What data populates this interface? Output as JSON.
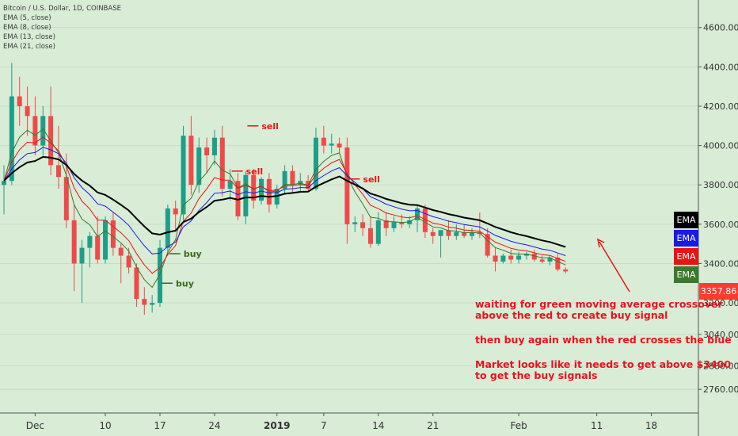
{
  "legend": {
    "symbol": "Bitcoin / U.S. Dollar, 1D, COINBASE",
    "ema1": "EMA (5, close)",
    "ema2": "EMA (8, close)",
    "ema3": "EMA (13, close)",
    "ema4": "EMA (21, close)"
  },
  "ema_tags": [
    {
      "label": "EMA",
      "color": "#000000"
    },
    {
      "label": "EMA",
      "color": "#1a1ae6"
    },
    {
      "label": "EMA",
      "color": "#e81414"
    },
    {
      "label": "EMA",
      "color": "#3a7a2a"
    }
  ],
  "last_price": "3357.86",
  "notes": {
    "line1": "waiting for green moving average crossover",
    "line2": "above the red to create buy signal",
    "line3": "then buy again when the red crosses the blue",
    "line4": "Market looks like it needs to get above $3400",
    "line5": "to get the buy signals"
  },
  "chart_data": {
    "type": "candlestick",
    "title": "Bitcoin / U.S. Dollar, 1D, COINBASE",
    "ylim": [
      2640,
      4740
    ],
    "y_ticks": [
      "4600.00",
      "4400.00",
      "4200.00",
      "4000.00",
      "3800.00",
      "3600.00",
      "3400.00",
      "3200.00",
      "3040.00",
      "2880.00",
      "2760.00"
    ],
    "y_tick_values": [
      4600,
      4400,
      4200,
      4000,
      3800,
      3600,
      3400,
      3200,
      3040,
      2880,
      2760
    ],
    "x_ticks": [
      {
        "label": "Dec",
        "index": 4
      },
      {
        "label": "10",
        "index": 13
      },
      {
        "label": "17",
        "index": 20
      },
      {
        "label": "24",
        "index": 27
      },
      {
        "label": "2019",
        "index": 35
      },
      {
        "label": "7",
        "index": 41
      },
      {
        "label": "14",
        "index": 48
      },
      {
        "label": "21",
        "index": 55
      },
      {
        "label": "Feb",
        "index": 66
      },
      {
        "label": "11",
        "index": 76
      },
      {
        "label": "18",
        "index": 83
      }
    ],
    "candles": [
      {
        "o": 3800,
        "h": 3900,
        "l": 3650,
        "c": 3820
      },
      {
        "o": 3820,
        "h": 4420,
        "l": 3800,
        "c": 4250
      },
      {
        "o": 4250,
        "h": 4350,
        "l": 4100,
        "c": 4200
      },
      {
        "o": 4200,
        "h": 4300,
        "l": 4050,
        "c": 4150
      },
      {
        "o": 4150,
        "h": 4250,
        "l": 3950,
        "c": 4000
      },
      {
        "o": 4000,
        "h": 4200,
        "l": 3950,
        "c": 4150
      },
      {
        "o": 4150,
        "h": 4300,
        "l": 3850,
        "c": 3900
      },
      {
        "o": 3900,
        "h": 4100,
        "l": 3780,
        "c": 3840
      },
      {
        "o": 3840,
        "h": 3960,
        "l": 3580,
        "c": 3620
      },
      {
        "o": 3620,
        "h": 3700,
        "l": 3260,
        "c": 3400
      },
      {
        "o": 3400,
        "h": 3520,
        "l": 3200,
        "c": 3480
      },
      {
        "o": 3480,
        "h": 3560,
        "l": 3380,
        "c": 3540
      },
      {
        "o": 3540,
        "h": 3640,
        "l": 3400,
        "c": 3420
      },
      {
        "o": 3420,
        "h": 3640,
        "l": 3400,
        "c": 3620
      },
      {
        "o": 3620,
        "h": 3660,
        "l": 3440,
        "c": 3480
      },
      {
        "o": 3480,
        "h": 3500,
        "l": 3300,
        "c": 3440
      },
      {
        "o": 3440,
        "h": 3480,
        "l": 3350,
        "c": 3380
      },
      {
        "o": 3380,
        "h": 3400,
        "l": 3180,
        "c": 3220
      },
      {
        "o": 3220,
        "h": 3280,
        "l": 3140,
        "c": 3190
      },
      {
        "o": 3190,
        "h": 3240,
        "l": 3150,
        "c": 3200
      },
      {
        "o": 3200,
        "h": 3520,
        "l": 3180,
        "c": 3480
      },
      {
        "o": 3480,
        "h": 3700,
        "l": 3440,
        "c": 3680
      },
      {
        "o": 3680,
        "h": 3720,
        "l": 3560,
        "c": 3650
      },
      {
        "o": 3650,
        "h": 4100,
        "l": 3620,
        "c": 4050
      },
      {
        "o": 4050,
        "h": 4150,
        "l": 3750,
        "c": 3800
      },
      {
        "o": 3800,
        "h": 4040,
        "l": 3760,
        "c": 3990
      },
      {
        "o": 3990,
        "h": 4040,
        "l": 3860,
        "c": 3950
      },
      {
        "o": 3950,
        "h": 4080,
        "l": 3900,
        "c": 4040
      },
      {
        "o": 4040,
        "h": 4100,
        "l": 3740,
        "c": 3780
      },
      {
        "o": 3780,
        "h": 3880,
        "l": 3720,
        "c": 3820
      },
      {
        "o": 3820,
        "h": 3860,
        "l": 3620,
        "c": 3640
      },
      {
        "o": 3640,
        "h": 3870,
        "l": 3600,
        "c": 3850
      },
      {
        "o": 3850,
        "h": 3880,
        "l": 3680,
        "c": 3720
      },
      {
        "o": 3720,
        "h": 3840,
        "l": 3700,
        "c": 3830
      },
      {
        "o": 3830,
        "h": 3860,
        "l": 3660,
        "c": 3700
      },
      {
        "o": 3700,
        "h": 3800,
        "l": 3680,
        "c": 3780
      },
      {
        "o": 3780,
        "h": 3900,
        "l": 3750,
        "c": 3870
      },
      {
        "o": 3870,
        "h": 3900,
        "l": 3760,
        "c": 3800
      },
      {
        "o": 3800,
        "h": 3860,
        "l": 3760,
        "c": 3820
      },
      {
        "o": 3820,
        "h": 3850,
        "l": 3770,
        "c": 3780
      },
      {
        "o": 3780,
        "h": 4090,
        "l": 3770,
        "c": 4040
      },
      {
        "o": 4040,
        "h": 4100,
        "l": 3960,
        "c": 4000
      },
      {
        "o": 4000,
        "h": 4060,
        "l": 3960,
        "c": 4010
      },
      {
        "o": 4010,
        "h": 4040,
        "l": 3960,
        "c": 3990
      },
      {
        "o": 3990,
        "h": 4040,
        "l": 3500,
        "c": 3600
      },
      {
        "o": 3600,
        "h": 3640,
        "l": 3560,
        "c": 3610
      },
      {
        "o": 3610,
        "h": 3650,
        "l": 3540,
        "c": 3580
      },
      {
        "o": 3580,
        "h": 3640,
        "l": 3480,
        "c": 3500
      },
      {
        "o": 3500,
        "h": 3660,
        "l": 3490,
        "c": 3620
      },
      {
        "o": 3620,
        "h": 3660,
        "l": 3540,
        "c": 3580
      },
      {
        "o": 3580,
        "h": 3640,
        "l": 3560,
        "c": 3610
      },
      {
        "o": 3610,
        "h": 3650,
        "l": 3580,
        "c": 3600
      },
      {
        "o": 3600,
        "h": 3640,
        "l": 3580,
        "c": 3620
      },
      {
        "o": 3620,
        "h": 3700,
        "l": 3560,
        "c": 3680
      },
      {
        "o": 3680,
        "h": 3700,
        "l": 3530,
        "c": 3560
      },
      {
        "o": 3560,
        "h": 3580,
        "l": 3500,
        "c": 3540
      },
      {
        "o": 3540,
        "h": 3570,
        "l": 3430,
        "c": 3570
      },
      {
        "o": 3570,
        "h": 3620,
        "l": 3520,
        "c": 3540
      },
      {
        "o": 3540,
        "h": 3600,
        "l": 3520,
        "c": 3560
      },
      {
        "o": 3560,
        "h": 3600,
        "l": 3530,
        "c": 3540
      },
      {
        "o": 3540,
        "h": 3580,
        "l": 3520,
        "c": 3560
      },
      {
        "o": 3560,
        "h": 3660,
        "l": 3530,
        "c": 3550
      },
      {
        "o": 3550,
        "h": 3580,
        "l": 3430,
        "c": 3440
      },
      {
        "o": 3440,
        "h": 3480,
        "l": 3360,
        "c": 3410
      },
      {
        "o": 3410,
        "h": 3450,
        "l": 3400,
        "c": 3440
      },
      {
        "o": 3440,
        "h": 3470,
        "l": 3400,
        "c": 3420
      },
      {
        "o": 3420,
        "h": 3460,
        "l": 3400,
        "c": 3440
      },
      {
        "o": 3440,
        "h": 3460,
        "l": 3420,
        "c": 3450
      },
      {
        "o": 3450,
        "h": 3470,
        "l": 3410,
        "c": 3420
      },
      {
        "o": 3420,
        "h": 3440,
        "l": 3400,
        "c": 3410
      },
      {
        "o": 3410,
        "h": 3440,
        "l": 3390,
        "c": 3430
      },
      {
        "o": 3430,
        "h": 3450,
        "l": 3360,
        "c": 3370
      },
      {
        "o": 3370,
        "h": 3380,
        "l": 3350,
        "c": 3360
      }
    ],
    "series": [
      {
        "name": "EMA (5, close)",
        "color": "#3a7a2a"
      },
      {
        "name": "EMA (8, close)",
        "color": "#e81414"
      },
      {
        "name": "EMA (13, close)",
        "color": "#1a1ae6"
      },
      {
        "name": "EMA (21, close)",
        "color": "#000000"
      }
    ],
    "annotations": [
      {
        "text": "buy",
        "color": "#3a6a1a",
        "index": 21,
        "price": 3450
      },
      {
        "text": "buy",
        "color": "#3a6a1a",
        "index": 20,
        "price": 3300
      },
      {
        "text": "sell",
        "color": "#e81414",
        "index": 29,
        "price": 3870
      },
      {
        "text": "sell",
        "color": "#e81414",
        "index": 31,
        "price": 4100
      },
      {
        "text": "sell",
        "color": "#e81414",
        "index": 44,
        "price": 3830
      }
    ]
  }
}
